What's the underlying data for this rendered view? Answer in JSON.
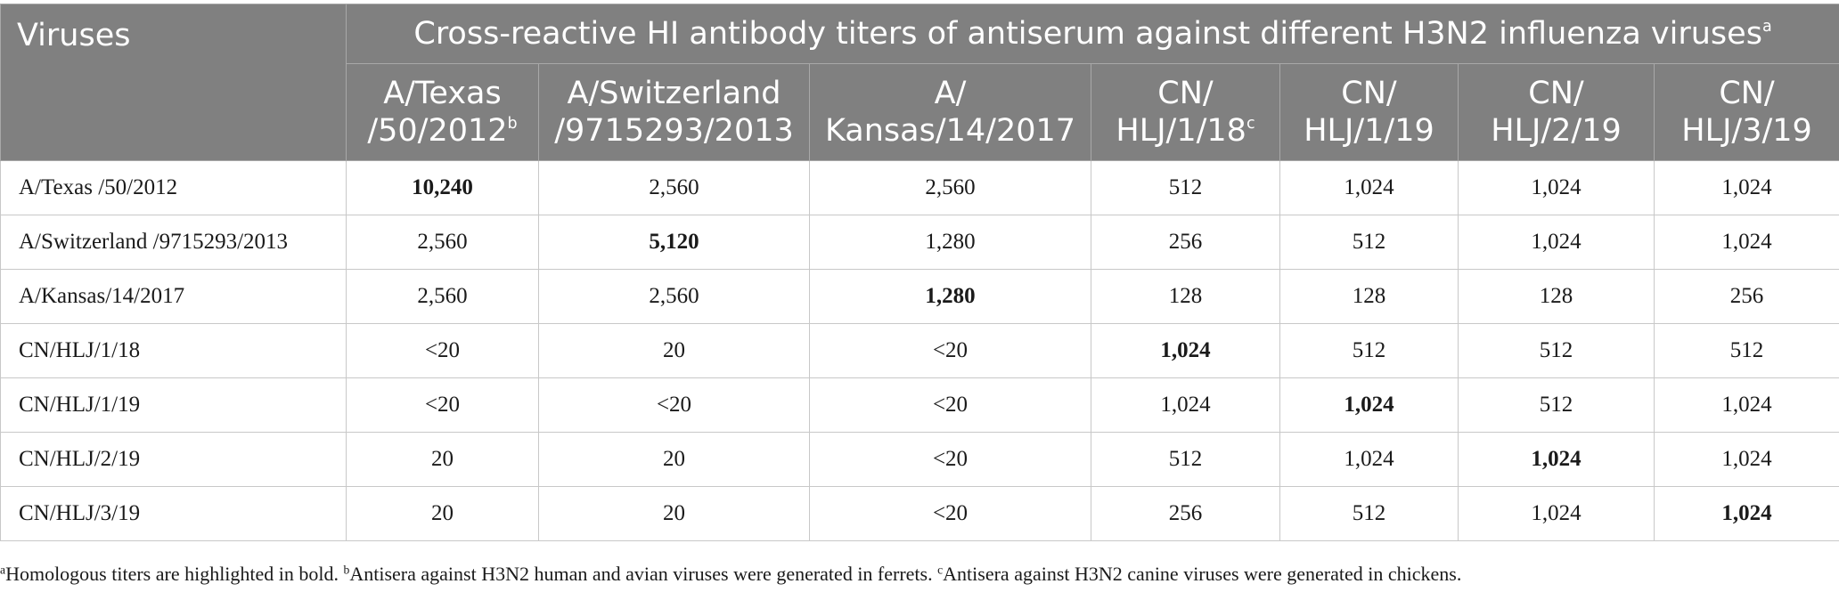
{
  "table": {
    "corner_label": "Viruses",
    "span_title": "Cross-reactive HI antibody titers of antiserum against different H3N2 influenza viruses",
    "span_title_sup": "a",
    "columns": [
      {
        "line1": "A/Texas",
        "line2": "/50/2012",
        "sup": "b"
      },
      {
        "line1": "A/Switzerland",
        "line2": "/9715293/2013",
        "sup": ""
      },
      {
        "line1": "A/",
        "line2": "Kansas/14/2017",
        "sup": ""
      },
      {
        "line1": "CN/",
        "line2": "HLJ/1/18",
        "sup": "c"
      },
      {
        "line1": "CN/",
        "line2": "HLJ/1/19",
        "sup": ""
      },
      {
        "line1": "CN/",
        "line2": "HLJ/2/19",
        "sup": ""
      },
      {
        "line1": "CN/",
        "line2": "HLJ/3/19",
        "sup": ""
      }
    ],
    "rows": [
      {
        "virus": "A/Texas /50/2012",
        "values": [
          "10,240",
          "2,560",
          "2,560",
          "512",
          "1,024",
          "1,024",
          "1,024"
        ]
      },
      {
        "virus": "A/Switzerland /9715293/2013",
        "values": [
          "2,560",
          "5,120",
          "1,280",
          "256",
          "512",
          "1,024",
          "1,024"
        ]
      },
      {
        "virus": "A/Kansas/14/2017",
        "values": [
          "2,560",
          "2,560",
          "1,280",
          "128",
          "128",
          "128",
          "256"
        ]
      },
      {
        "virus": "CN/HLJ/1/18",
        "values": [
          "<20",
          "20",
          "<20",
          "1,024",
          "512",
          "512",
          "512"
        ]
      },
      {
        "virus": "CN/HLJ/1/19",
        "values": [
          "<20",
          "<20",
          "<20",
          "1,024",
          "1,024",
          "512",
          "1,024"
        ]
      },
      {
        "virus": "CN/HLJ/2/19",
        "values": [
          "20",
          "20",
          "<20",
          "512",
          "1,024",
          "1,024",
          "1,024"
        ]
      },
      {
        "virus": "CN/HLJ/3/19",
        "values": [
          "20",
          "20",
          "<20",
          "256",
          "512",
          "1,024",
          "1,024"
        ]
      }
    ],
    "bold_note": "Homologous titers (row index equals column index) are bold"
  },
  "footnote": {
    "a_marker": "a",
    "a_text": "Homologous titers are highlighted in bold. ",
    "b_marker": "b",
    "b_text": "Antisera against H3N2 human and avian viruses were generated in ferrets. ",
    "c_marker": "c",
    "c_text": "Antisera against H3N2 canine viruses were generated in chickens."
  }
}
